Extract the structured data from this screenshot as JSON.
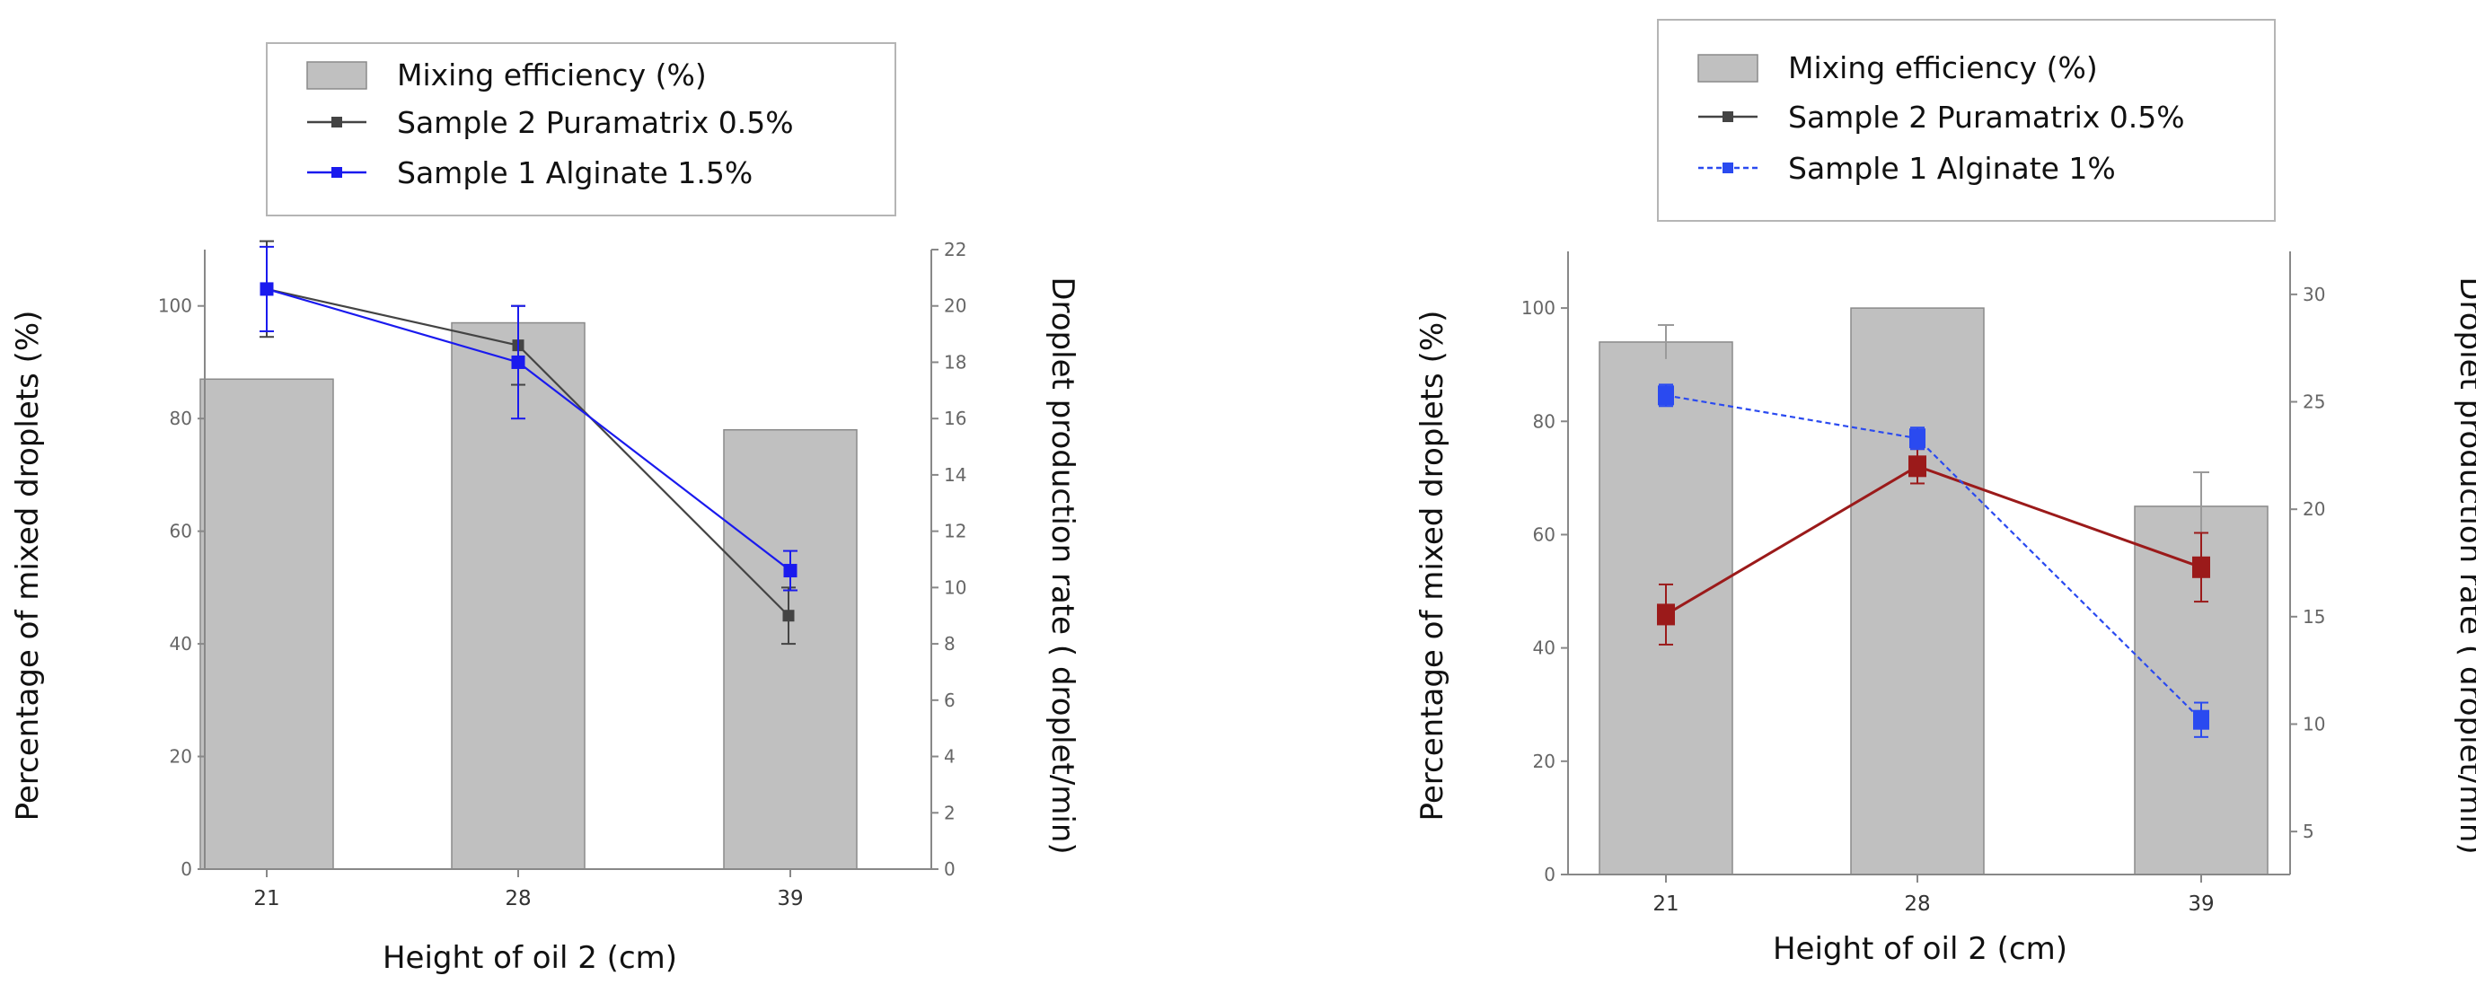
{
  "chart_data": [
    {
      "type": "bar+line",
      "title": "",
      "xlabel": "Height of oil 2 (cm)",
      "ylabel": "Percentage of mixed droplets (%)",
      "y2label": "Droplet production rate ( droplet/min)",
      "categories": [
        "21",
        "28",
        "39"
      ],
      "ylim": [
        0,
        110
      ],
      "y2lim": [
        0,
        22
      ],
      "yticks": [
        "0",
        "20",
        "40",
        "60",
        "80",
        "100"
      ],
      "y2ticks": [
        "0",
        "2",
        "4",
        "6",
        "8",
        "10",
        "12",
        "14",
        "16",
        "18",
        "20",
        "22"
      ],
      "legend_position": "top",
      "bars": {
        "name": "Mixing efficiency (%)",
        "values": [
          87,
          97,
          78
        ],
        "errors": [
          0,
          0,
          0
        ],
        "color": "#c0c0c0"
      },
      "series": [
        {
          "name": "Sample 2 Puramatrix 0.5%",
          "color": "#444444",
          "axis": "y2",
          "dashed": false,
          "values": [
            20.6,
            18.6,
            9.0
          ],
          "errors": [
            1.7,
            1.4,
            1.0
          ]
        },
        {
          "name": "Sample 1 Alginate 1.5%",
          "color": "#1a1aee",
          "axis": "y2",
          "dashed": false,
          "values": [
            20.6,
            18.0,
            10.6
          ],
          "errors": [
            1.5,
            2.0,
            0.7
          ]
        }
      ]
    },
    {
      "type": "bar+line",
      "title": "",
      "xlabel": "Height of oil 2 (cm)",
      "ylabel": "Percentage of mixed droplets (%)",
      "y2label": "Droplet production rate ( droplet/min)",
      "categories": [
        "21",
        "28",
        "39"
      ],
      "ylim": [
        0,
        110
      ],
      "y2lim": [
        3,
        32
      ],
      "yticks": [
        "0",
        "20",
        "40",
        "60",
        "80",
        "100"
      ],
      "y2ticks": [
        "5",
        "10",
        "15",
        "20",
        "25",
        "30"
      ],
      "legend_position": "top",
      "bars": {
        "name": "Mixing efficiency (%)",
        "values": [
          94,
          100,
          65
        ],
        "errors": [
          3,
          0,
          6
        ],
        "color": "#c0c0c0"
      },
      "series": [
        {
          "name": "Sample 2 Puramatrix 0.5%",
          "color": "#9b1a1a",
          "legend_color": "#444444",
          "axis": "y2",
          "dashed": false,
          "values": [
            15.1,
            22.0,
            17.3
          ],
          "errors": [
            1.4,
            0.8,
            1.6
          ]
        },
        {
          "name": "Sample 1 Alginate 1%",
          "color": "#2a4af0",
          "axis": "y2",
          "dashed": true,
          "values": [
            25.3,
            23.3,
            10.2
          ],
          "errors": [
            0.5,
            0.5,
            0.8
          ]
        }
      ]
    }
  ]
}
